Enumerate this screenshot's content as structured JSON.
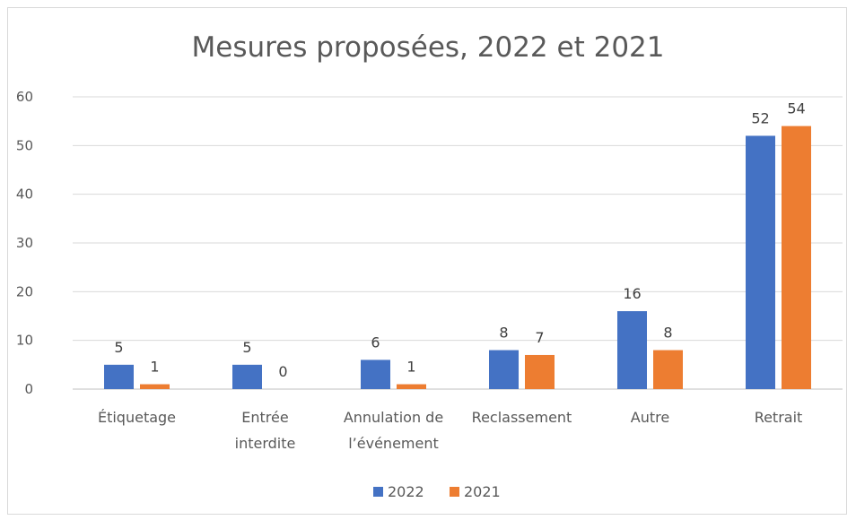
{
  "chart_data": {
    "type": "bar",
    "title": "Mesures proposées, 2022 et 2021",
    "categories": [
      [
        "Étiquetage"
      ],
      [
        "Entrée",
        "interdite"
      ],
      [
        "Annulation de",
        "l’événement"
      ],
      [
        "Reclassement"
      ],
      [
        "Autre"
      ],
      [
        "Retrait"
      ]
    ],
    "series": [
      {
        "name": "2022",
        "color": "#4472c4",
        "values": [
          5,
          5,
          6,
          8,
          16,
          52
        ]
      },
      {
        "name": "2021",
        "color": "#ed7d31",
        "values": [
          1,
          0,
          1,
          7,
          8,
          54
        ]
      }
    ],
    "ylim": [
      0,
      60
    ],
    "yticks": [
      0,
      10,
      20,
      30,
      40,
      50,
      60
    ],
    "grid": true,
    "legend": "bottom",
    "xlabel": "",
    "ylabel": ""
  }
}
